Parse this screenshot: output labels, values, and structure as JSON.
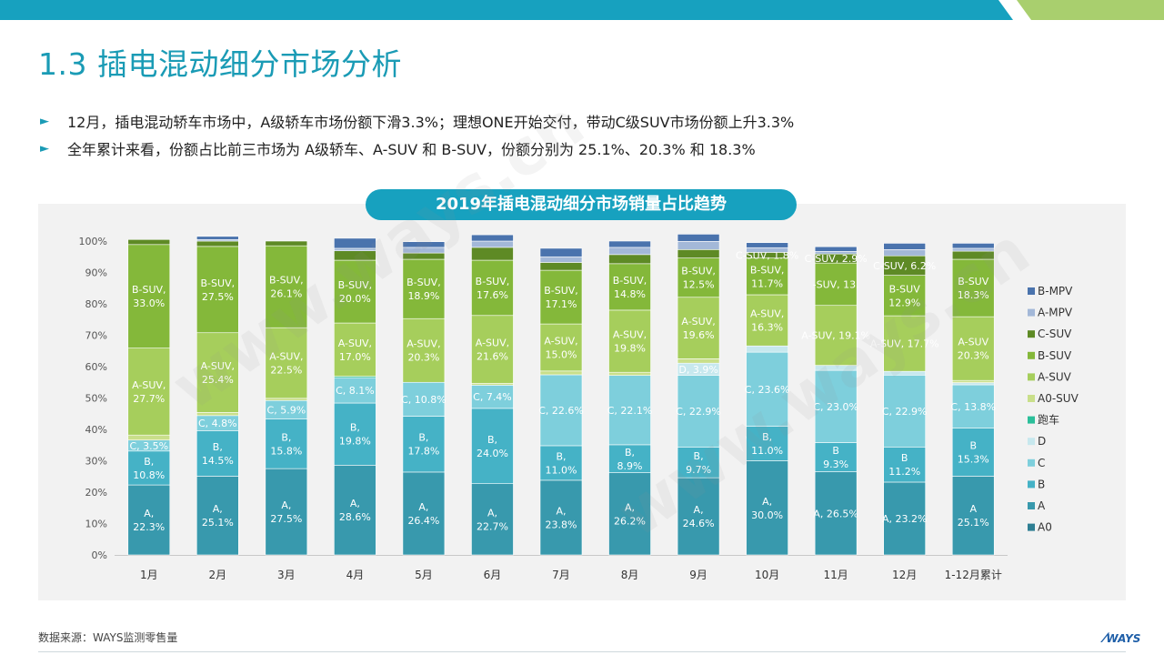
{
  "page": {
    "title": "1.3 插电混动细分市场分析",
    "bullets": [
      "12月，插电混动轿车市场中，A级轿车市场份额下滑3.3%；理想ONE开始交付，带动C级SUV市场份额上升3.3%",
      "全年累计来看，份额占比前三市场为 A级轿车、A-SUV 和 B-SUV，份额分别为 25.1%、20.3% 和 18.3%"
    ],
    "source": "数据来源：WAYS监测零售量",
    "logo": "WAYS",
    "watermark": "www.ways.cn",
    "colors": {
      "accent": "#1a9bb5",
      "topbar_blue": "#17a1bf",
      "topbar_green": "#a9cf6e"
    }
  },
  "chart_data": {
    "type": "bar",
    "stacked": true,
    "title": "2019年插电混动细分市场销量占比趋势",
    "categories": [
      "1月",
      "2月",
      "3月",
      "4月",
      "5月",
      "6月",
      "7月",
      "8月",
      "9月",
      "10月",
      "11月",
      "12月",
      "1-12月累计"
    ],
    "yticks": [
      "0%",
      "10%",
      "20%",
      "30%",
      "40%",
      "50%",
      "60%",
      "70%",
      "80%",
      "90%",
      "100%"
    ],
    "ylim": [
      0,
      100
    ],
    "legend_position": "right",
    "series": [
      {
        "name": "A0",
        "color": "#2e7f93",
        "values": [
          0,
          0,
          0,
          0,
          0,
          0,
          0,
          0,
          0,
          0,
          0,
          0,
          0
        ]
      },
      {
        "name": "A",
        "color": "#3899ad",
        "values": [
          22.3,
          25.1,
          27.5,
          28.6,
          26.4,
          22.7,
          23.8,
          26.2,
          24.6,
          30.0,
          26.5,
          23.2,
          25.1
        ],
        "labels": [
          "A,|22.3%",
          "A,|25.1%",
          "A,|27.5%",
          "A,|28.6%",
          "A,|26.4%",
          "A,|22.7%",
          "A,|23.8%",
          "A,|26.2%",
          "A,|24.6%",
          "A,|30.0%",
          "A, 26.5%",
          "A, 23.2%",
          "A|25.1%"
        ]
      },
      {
        "name": "B",
        "color": "#45b2c6",
        "values": [
          10.8,
          14.5,
          15.8,
          19.8,
          17.8,
          24.0,
          11.0,
          8.9,
          9.7,
          11.0,
          9.3,
          11.2,
          15.3
        ],
        "labels": [
          "B,|10.8%",
          "B,|14.5%",
          "B,|15.8%",
          "B,|19.8%",
          "B,|17.8%",
          "B,|24.0%",
          "B,|11.0%",
          "B,|8.9%",
          "B,|9.7%",
          "B,|11.0%",
          "B|9.3%",
          "B|11.2%",
          "B|15.3%"
        ]
      },
      {
        "name": "C",
        "color": "#7ecfdc",
        "values": [
          3.5,
          4.8,
          5.9,
          8.1,
          10.8,
          7.4,
          22.6,
          22.1,
          22.9,
          23.6,
          23.0,
          22.9,
          13.8
        ],
        "labels": [
          "C, 3.5%",
          "C, 4.8%",
          "C, 5.9%",
          "C, 8.1%",
          "C, 10.8%",
          "C, 7.4%",
          "C, 22.6%",
          "C, 22.1%",
          "C, 22.9%",
          "C, 23.6%",
          "C, 23.0%",
          "C, 22.9%",
          "C, 13.8%"
        ]
      },
      {
        "name": "D",
        "color": "#c7e8ee",
        "values": [
          0,
          0,
          0,
          0,
          0,
          0,
          0,
          0,
          3.9,
          2.0,
          1.6,
          1.2,
          0.7
        ],
        "labels": [
          "",
          "",
          "",
          "",
          "",
          "",
          "",
          "",
          "D, 3.9%",
          "",
          "",
          "",
          ""
        ]
      },
      {
        "name": "跑车",
        "color": "#2bbf9a",
        "values": [
          0,
          0,
          0,
          0.4,
          0,
          0,
          0,
          0,
          0,
          0,
          0,
          0,
          0
        ]
      },
      {
        "name": "A0-SUV",
        "color": "#c9df8a",
        "values": [
          1.6,
          1.0,
          0.7,
          0,
          0,
          0.6,
          1.2,
          1.0,
          1.4,
          0,
          0,
          0,
          0.7
        ]
      },
      {
        "name": "A-SUV",
        "color": "#a6ce5c",
        "values": [
          27.7,
          25.4,
          22.5,
          17.0,
          20.3,
          21.6,
          15.0,
          19.8,
          19.6,
          16.3,
          19.1,
          17.7,
          20.3
        ],
        "labels": [
          "A-SUV,|27.7%",
          "A-SUV,|25.4%",
          "A-SUV,|22.5%",
          "A-SUV,|17.0%",
          "A-SUV,|20.3%",
          "A-SUV,|21.6%",
          "A-SUV,|15.0%",
          "A-SUV,|19.8%",
          "A-SUV,|19.6%",
          "A-SUV,|16.3%",
          "A-SUV, 19.1%",
          "A-SUV, 17.7%",
          "A-SUV|20.3%"
        ]
      },
      {
        "name": "B-SUV",
        "color": "#84b83a",
        "values": [
          33.0,
          27.5,
          26.1,
          20.0,
          18.9,
          17.6,
          17.1,
          14.8,
          12.5,
          11.7,
          13.5,
          12.9,
          18.3
        ],
        "labels": [
          "B-SUV,|33.0%",
          "B-SUV,|27.5%",
          "B-SUV,|26.1%",
          "B-SUV,|20.0%",
          "B-SUV,|18.9%",
          "B-SUV,|17.6%",
          "B-SUV,|17.1%",
          "B-SUV,|14.8%",
          "B-SUV,|12.5%",
          "B-SUV,|11.7%",
          "-SUV, 13.",
          "B-SUV|12.9%",
          "B-SUV|18.3%"
        ]
      },
      {
        "name": "C-SUV",
        "color": "#5e8a25",
        "values": [
          1.6,
          1.7,
          1.5,
          3.0,
          2.0,
          4.1,
          2.5,
          2.9,
          2.7,
          1.8,
          2.9,
          6.2,
          2.6
        ],
        "labels": [
          "",
          "",
          "",
          "",
          "",
          "",
          "",
          "",
          "",
          "C-SUV, 1.8%",
          "C-SUV, 2.9%",
          "C-SUV, 6.2%",
          ""
        ]
      },
      {
        "name": "A-MPV",
        "color": "#a3b8d8",
        "values": [
          0,
          0.5,
          0,
          0.8,
          1.8,
          2.0,
          1.8,
          2.3,
          2.6,
          1.5,
          0.8,
          2.0,
          0.9
        ]
      },
      {
        "name": "B-MPV",
        "color": "#4a73ad",
        "values": [
          0,
          1.0,
          0,
          3.2,
          1.8,
          2.0,
          2.7,
          2.0,
          2.3,
          1.6,
          1.5,
          2.0,
          1.6
        ]
      }
    ],
    "legend_order": [
      "B-MPV",
      "A-MPV",
      "C-SUV",
      "B-SUV",
      "A-SUV",
      "A0-SUV",
      "跑车",
      "D",
      "C",
      "B",
      "A",
      "A0"
    ]
  }
}
